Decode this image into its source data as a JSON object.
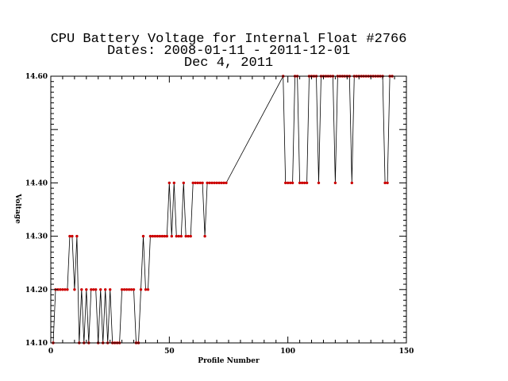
{
  "chart_data": {
    "type": "line",
    "title_lines": [
      "CPU Battery Voltage for Internal Float #2766",
      "Dates:  2008-01-11 -  2011-12-01",
      "Dec  4, 2011"
    ],
    "xlabel": "Profile Number",
    "ylabel": "Voltage",
    "xlim": [
      0,
      150
    ],
    "ylim": [
      14.1,
      14.6
    ],
    "x_ticks": [
      0,
      50,
      100,
      150
    ],
    "x_tick_labels": [
      "0",
      "50",
      "100",
      "150"
    ],
    "y_ticks": [
      14.1,
      14.2,
      14.3,
      14.4,
      14.6
    ],
    "y_tick_labels": [
      "14.10",
      "14.20",
      "14.30",
      "14.40",
      "14.60"
    ],
    "grid": false,
    "colors": {
      "line": "#000000",
      "marker": "#cc0000",
      "axes": "#000000"
    },
    "series": [
      {
        "x": [
          1,
          2,
          3,
          4,
          5,
          6,
          7,
          8,
          9,
          10,
          11,
          12,
          13,
          14,
          15,
          16,
          17,
          18,
          19,
          20,
          21,
          22,
          23,
          24,
          25,
          26,
          27,
          28,
          29,
          30,
          31,
          32,
          33,
          34,
          35,
          36,
          37,
          38,
          39,
          40,
          41,
          42,
          43,
          44,
          45,
          46,
          47,
          48,
          49,
          50,
          51,
          52,
          53,
          54,
          55,
          56,
          57,
          58,
          59,
          60,
          61,
          62,
          63,
          64,
          65,
          66,
          67,
          68,
          69,
          70,
          71,
          72,
          73,
          74,
          98,
          99,
          100,
          101,
          102,
          103,
          104,
          105,
          106,
          107,
          108,
          109,
          110,
          111,
          112,
          113,
          114,
          115,
          116,
          117,
          118,
          119,
          120,
          121,
          122,
          123,
          124,
          125,
          126,
          127,
          128,
          129,
          130,
          131,
          132,
          133,
          134,
          135,
          136,
          137,
          138,
          139,
          140,
          141,
          142,
          143,
          144
        ],
        "y": [
          14.1,
          14.2,
          14.2,
          14.2,
          14.2,
          14.2,
          14.2,
          14.3,
          14.3,
          14.2,
          14.3,
          14.1,
          14.2,
          14.1,
          14.2,
          14.1,
          14.2,
          14.2,
          14.2,
          14.1,
          14.2,
          14.1,
          14.2,
          14.1,
          14.2,
          14.1,
          14.1,
          14.1,
          14.1,
          14.2,
          14.2,
          14.2,
          14.2,
          14.2,
          14.2,
          14.1,
          14.1,
          14.2,
          14.3,
          14.2,
          14.2,
          14.3,
          14.3,
          14.3,
          14.3,
          14.3,
          14.3,
          14.3,
          14.3,
          14.4,
          14.3,
          14.4,
          14.3,
          14.3,
          14.3,
          14.4,
          14.3,
          14.3,
          14.3,
          14.4,
          14.4,
          14.4,
          14.4,
          14.4,
          14.3,
          14.4,
          14.4,
          14.4,
          14.4,
          14.4,
          14.4,
          14.4,
          14.4,
          14.4,
          14.6,
          14.4,
          14.4,
          14.4,
          14.4,
          14.6,
          14.6,
          14.4,
          14.4,
          14.4,
          14.4,
          14.6,
          14.6,
          14.6,
          14.6,
          14.4,
          14.6,
          14.6,
          14.6,
          14.6,
          14.6,
          14.6,
          14.4,
          14.6,
          14.6,
          14.6,
          14.6,
          14.6,
          14.6,
          14.4,
          14.6,
          14.6,
          14.6,
          14.6,
          14.6,
          14.6,
          14.6,
          14.6,
          14.6,
          14.6,
          14.6,
          14.6,
          14.6,
          14.4,
          14.4,
          14.6,
          14.6
        ]
      }
    ]
  }
}
